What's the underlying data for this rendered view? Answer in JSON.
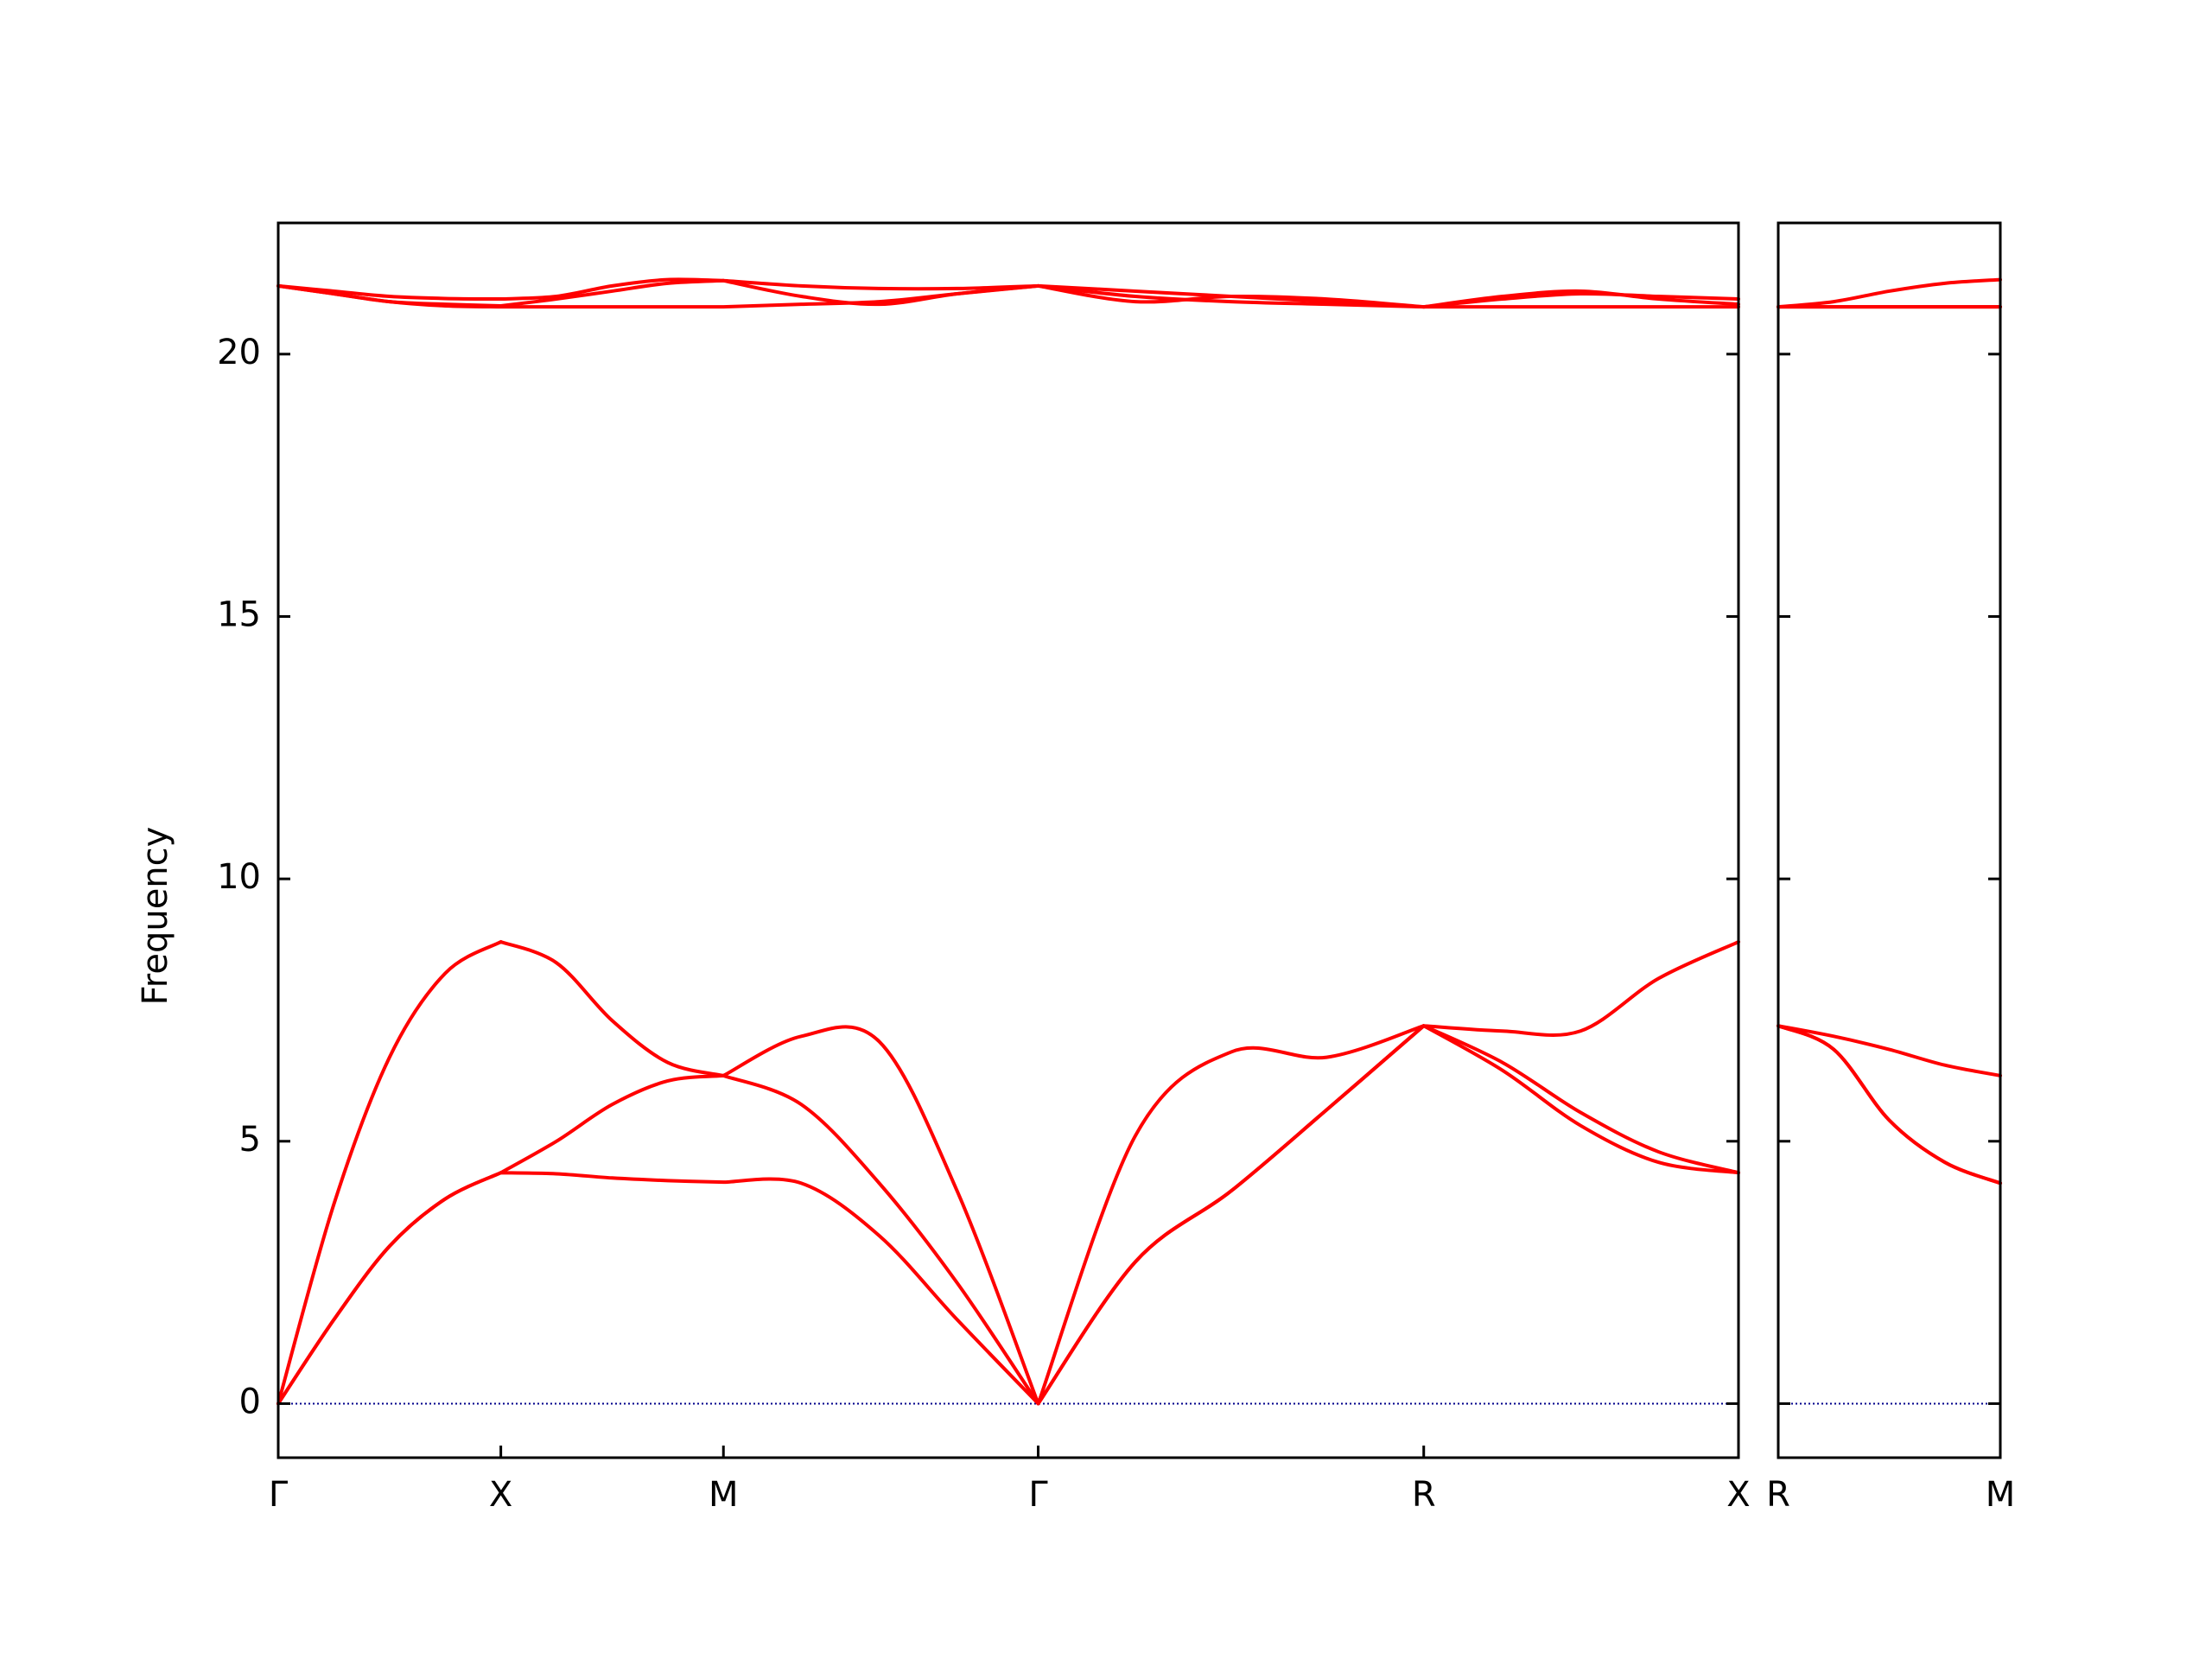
{
  "chart_data": [
    {
      "type": "line",
      "ylabel": "Frequency",
      "x": [
        0,
        0.25,
        0.5,
        0.75,
        1,
        1.25,
        1.5,
        1.75,
        2,
        2.35,
        2.7,
        3.05,
        3.414,
        3.85,
        4.28,
        4.71,
        5.146,
        5.5,
        5.85,
        6.2,
        6.56
      ],
      "xlim": [
        0,
        6.56
      ],
      "xticks": [
        {
          "value": 0,
          "label": "Γ"
        },
        {
          "value": 1,
          "label": "X"
        },
        {
          "value": 2,
          "label": "M"
        },
        {
          "value": 3.414,
          "label": "Γ"
        },
        {
          "value": 5.146,
          "label": "R"
        },
        {
          "value": 6.56,
          "label": "X"
        }
      ],
      "ylim": [
        -1.03,
        22.5
      ],
      "yticks": [
        0,
        5,
        10,
        15,
        20
      ],
      "show_ytick_labels": true,
      "reference_line": {
        "value": 0,
        "color": "#00008b"
      },
      "series": [
        {
          "color": "#ff0000",
          "values": [
            0,
            1.6,
            3.0,
            3.9,
            4.4,
            4.38,
            4.3,
            4.25,
            4.22,
            4.2,
            3.2,
            1.6,
            0,
            2.7,
            4.05,
            5.6,
            7.2,
            6.35,
            5.3,
            4.6,
            4.4
          ]
        },
        {
          "color": "#ff0000",
          "values": [
            0,
            1.6,
            3.0,
            3.9,
            4.4,
            5.0,
            5.7,
            6.15,
            6.25,
            5.7,
            4.2,
            2.3,
            0,
            2.7,
            4.05,
            5.6,
            7.2,
            6.5,
            5.55,
            4.8,
            4.4
          ]
        },
        {
          "color": "#ff0000",
          "values": [
            0,
            3.8,
            6.6,
            8.2,
            8.8,
            8.4,
            7.3,
            6.5,
            6.25,
            7.0,
            6.9,
            4.05,
            0,
            5.1,
            6.7,
            6.6,
            7.2,
            7.1,
            7.1,
            8.1,
            8.8
          ]
        },
        {
          "color": "#ff0000",
          "values": [
            21.3,
            21.15,
            21.0,
            20.92,
            20.9,
            20.9,
            20.9,
            20.9,
            20.9,
            20.95,
            21.0,
            21.15,
            21.3,
            21.1,
            21.0,
            20.95,
            20.9,
            20.9,
            20.9,
            20.9,
            20.9
          ]
        },
        {
          "color": "#ff0000",
          "values": [
            21.3,
            21.15,
            21.0,
            20.95,
            20.92,
            21.05,
            21.2,
            21.35,
            21.4,
            21.1,
            20.95,
            21.15,
            21.3,
            21.2,
            21.1,
            21.0,
            20.9,
            21.1,
            21.2,
            21.05,
            20.95
          ]
        },
        {
          "color": "#ff0000",
          "values": [
            21.3,
            21.2,
            21.1,
            21.06,
            21.05,
            21.1,
            21.3,
            21.42,
            21.4,
            21.3,
            21.25,
            21.25,
            21.3,
            21.0,
            21.1,
            21.05,
            20.9,
            21.05,
            21.15,
            21.1,
            21.05
          ]
        }
      ]
    },
    {
      "type": "line",
      "x": [
        0,
        0.25,
        0.5,
        0.75,
        1
      ],
      "xlim": [
        0,
        1
      ],
      "xticks": [
        {
          "value": 0,
          "label": "R"
        },
        {
          "value": 1,
          "label": "M"
        }
      ],
      "ylim": [
        -1.03,
        22.5
      ],
      "yticks": [
        0,
        5,
        10,
        15,
        20
      ],
      "show_ytick_labels": false,
      "reference_line": {
        "value": 0,
        "color": "#00008b"
      },
      "series": [
        {
          "color": "#ff0000",
          "values": [
            7.2,
            6.75,
            5.4,
            4.6,
            4.2
          ]
        },
        {
          "color": "#ff0000",
          "values": [
            7.2,
            6.75,
            5.4,
            4.6,
            4.2
          ]
        },
        {
          "color": "#ff0000",
          "values": [
            7.2,
            7.0,
            6.75,
            6.45,
            6.25
          ]
        },
        {
          "color": "#ff0000",
          "values": [
            20.9,
            20.9,
            20.9,
            20.9,
            20.9
          ]
        },
        {
          "color": "#ff0000",
          "values": [
            20.9,
            20.9,
            20.9,
            20.9,
            20.9
          ]
        },
        {
          "color": "#ff0000",
          "values": [
            20.9,
            21.0,
            21.2,
            21.35,
            21.42
          ]
        }
      ]
    }
  ]
}
